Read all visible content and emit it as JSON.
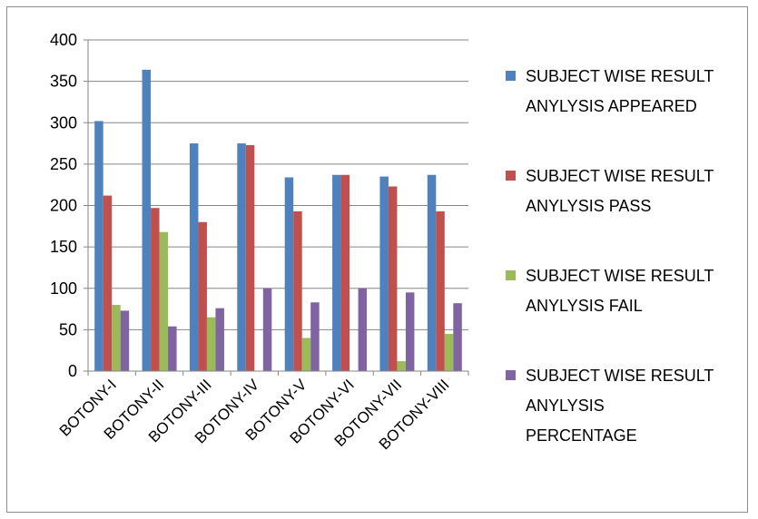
{
  "chart_data": {
    "type": "bar",
    "categories": [
      "BOTONY-I",
      "BOTONY-II",
      "BOTONY-III",
      "BOTONY-IV",
      "BOTONY-V",
      "BOTONY-VI",
      "BOTONY-VII",
      "BOTONY-VIII"
    ],
    "series": [
      {
        "name": "SUBJECT WISE RESULT ANYLYSIS APPEARED",
        "name_lines": [
          "SUBJECT WISE RESULT",
          "ANYLYSIS APPEARED"
        ],
        "color": "#4f81bd",
        "values": [
          302,
          364,
          275,
          275,
          234,
          237,
          235,
          237
        ]
      },
      {
        "name": "SUBJECT WISE RESULT ANYLYSIS PASS",
        "name_lines": [
          "SUBJECT WISE RESULT",
          "ANYLYSIS PASS"
        ],
        "color": "#c0504d",
        "values": [
          212,
          197,
          180,
          273,
          193,
          237,
          223,
          193
        ]
      },
      {
        "name": "SUBJECT WISE RESULT ANYLYSIS FAIL",
        "name_lines": [
          "SUBJECT WISE RESULT",
          "ANYLYSIS FAIL"
        ],
        "color": "#9bbb59",
        "values": [
          80,
          168,
          65,
          0,
          40,
          0,
          12,
          45
        ]
      },
      {
        "name": "SUBJECT WISE RESULT ANYLYSIS PERCENTAGE",
        "name_lines": [
          "SUBJECT WISE RESULT",
          "ANYLYSIS",
          "PERCENTAGE"
        ],
        "color": "#8064a2",
        "values": [
          73,
          54,
          76,
          100,
          83,
          100,
          95,
          82
        ]
      }
    ],
    "yticks": [
      0,
      50,
      100,
      150,
      200,
      250,
      300,
      350,
      400
    ],
    "ylim": [
      0,
      400
    ],
    "grid": true,
    "legend_position": "right"
  }
}
